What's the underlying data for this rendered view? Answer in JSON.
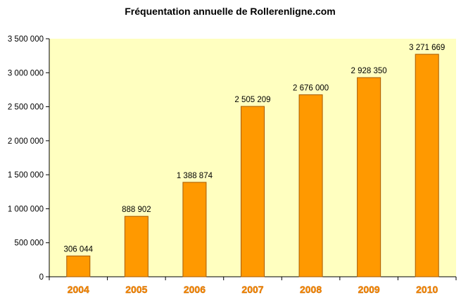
{
  "chart_data": {
    "type": "bar",
    "title": "Fréquentation annuelle de Rollerenligne.com",
    "categories": [
      "2004",
      "2005",
      "2006",
      "2007",
      "2008",
      "2009",
      "2010"
    ],
    "values": [
      306044,
      888902,
      1388874,
      2505209,
      2676000,
      2928350,
      3271669
    ],
    "data_labels": [
      "306 044",
      "888 902",
      "1 388 874",
      "2 505 209",
      "2 676 000",
      "2 928 350",
      "3 271 669"
    ],
    "ylim": [
      0,
      3500000
    ],
    "yticks": [
      0,
      500000,
      1000000,
      1500000,
      2000000,
      2500000,
      3000000,
      3500000
    ],
    "ytick_labels": [
      "0",
      "500 000",
      "1 000 000",
      "1 500 000",
      "2 000 000",
      "2 500 000",
      "3 000 000",
      "3 500 000"
    ],
    "xlabel": "",
    "ylabel": "",
    "grid": false,
    "legend": "none"
  },
  "colors": {
    "plot_background": "#ffffc0",
    "bar_fill": "#ff9900",
    "bar_edge": "#a85a00",
    "category_label": "#ff8c00"
  }
}
